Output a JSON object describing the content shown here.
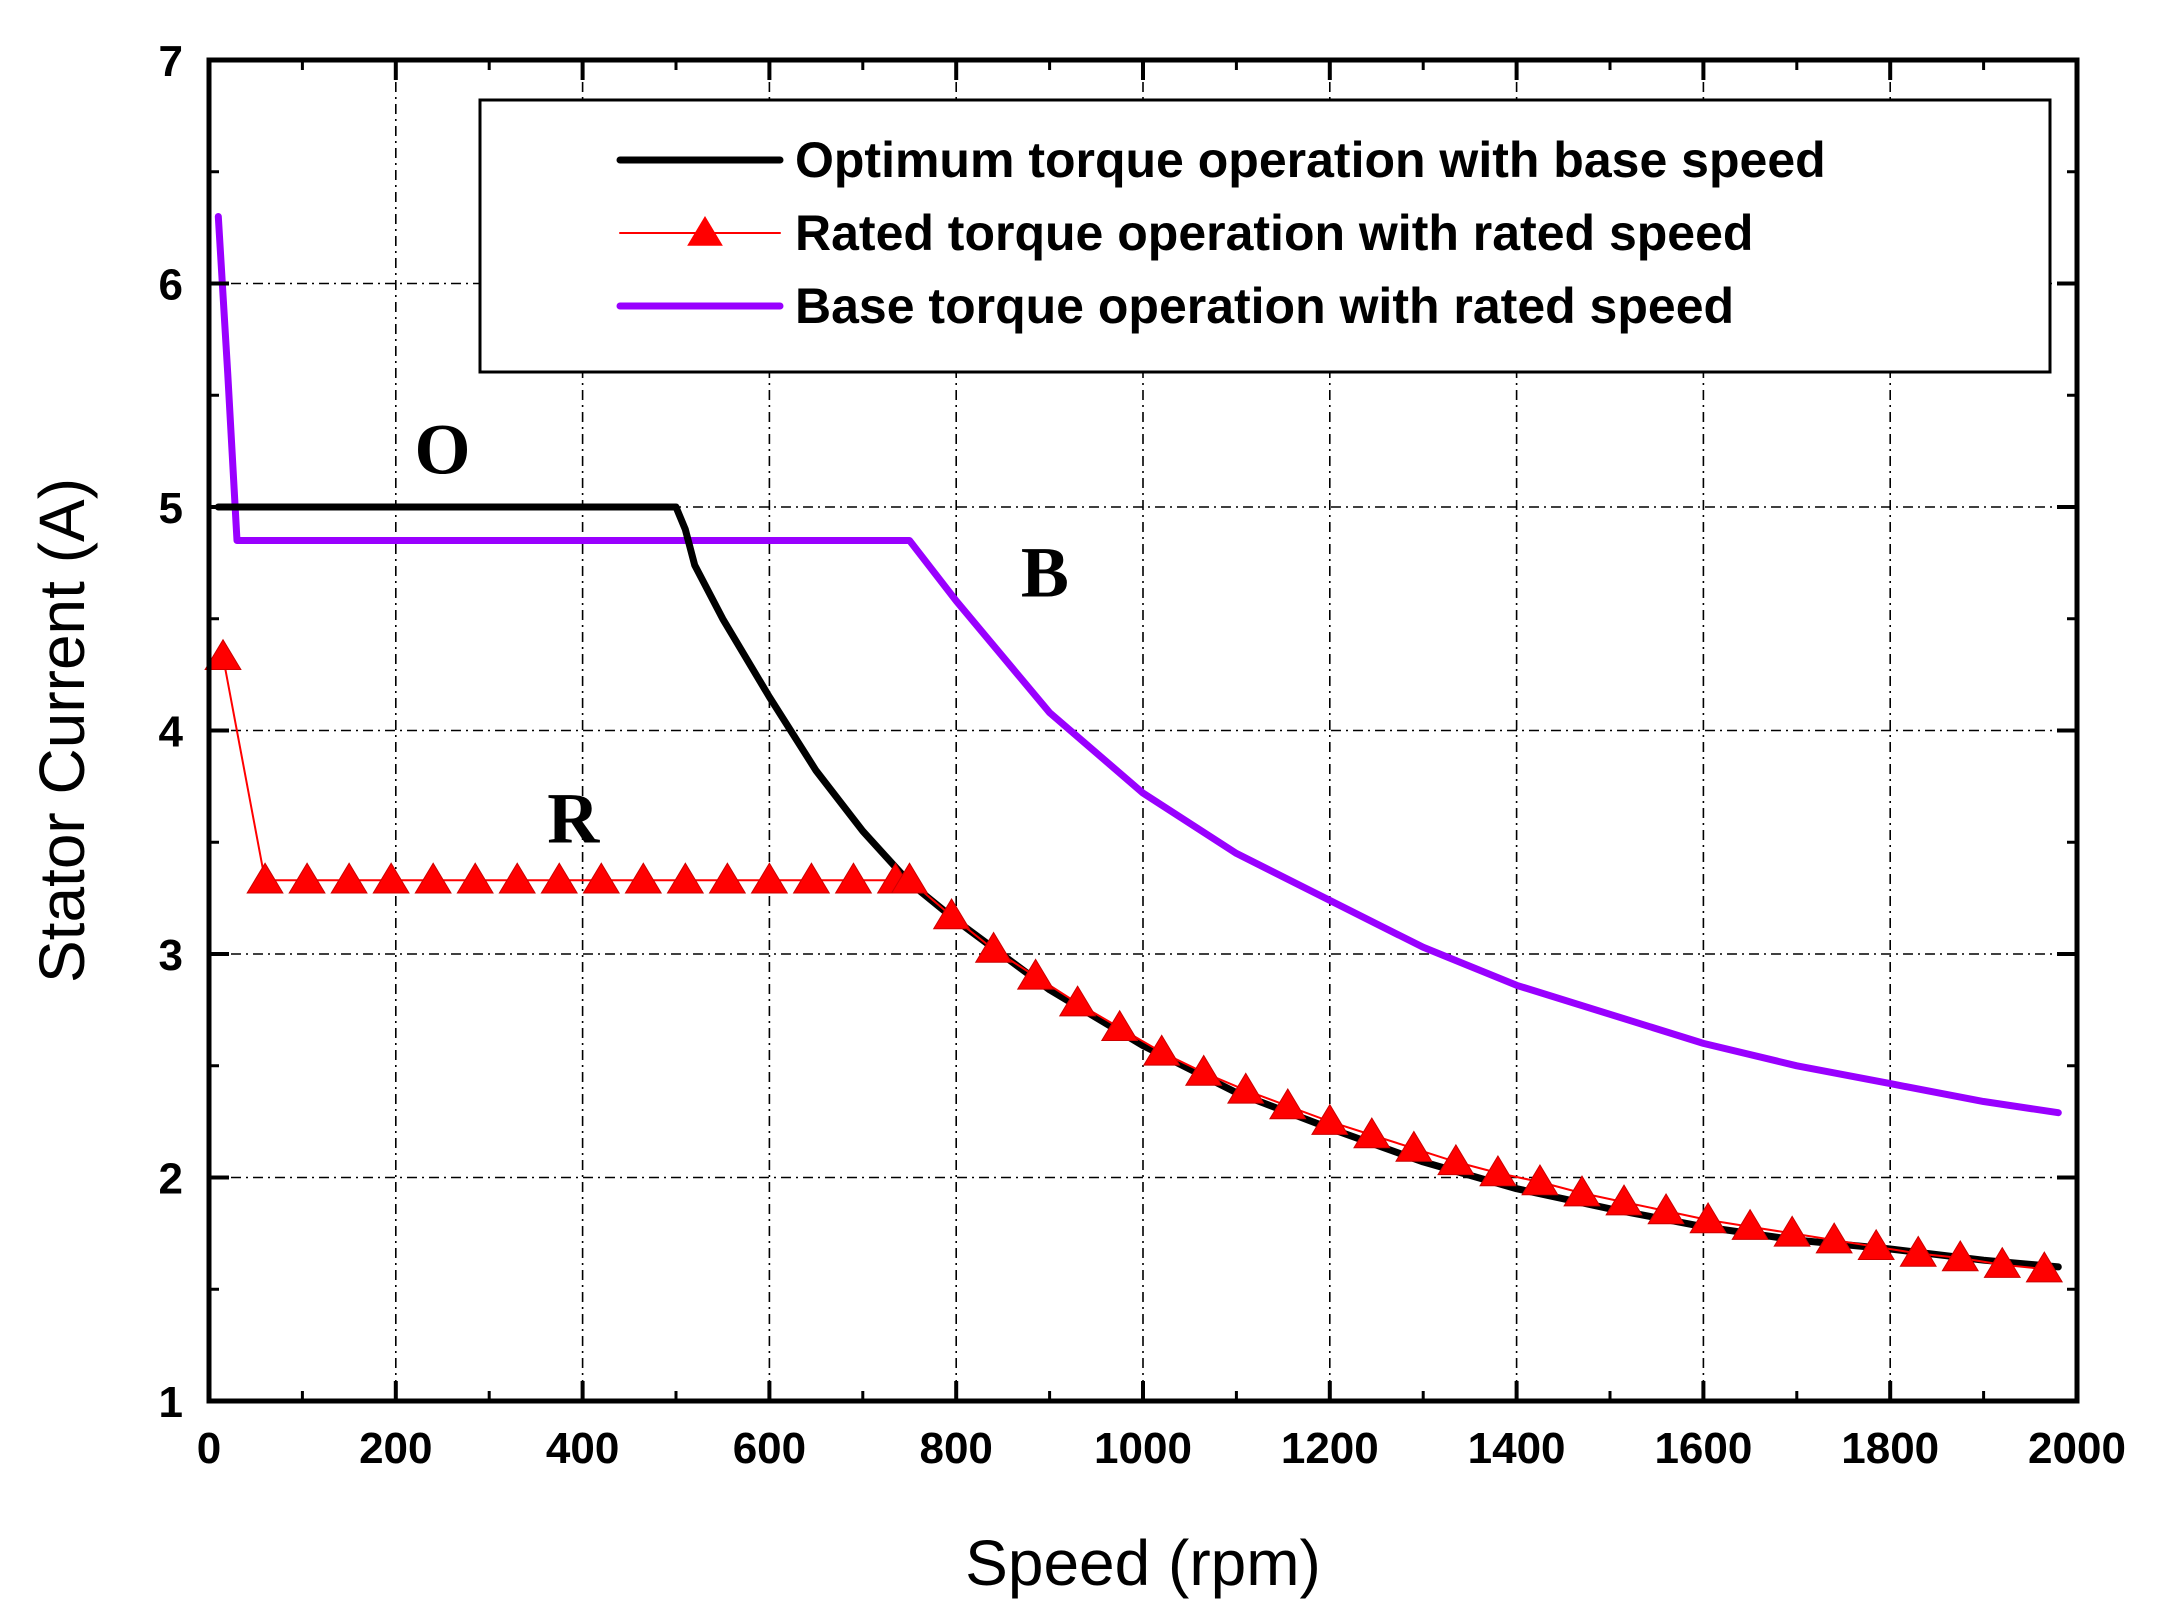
{
  "chart_data": {
    "type": "line",
    "title": "",
    "xlabel": "Speed (rpm)",
    "ylabel": "Stator Current (A)",
    "xlim": [
      0,
      2000
    ],
    "ylim": [
      1,
      7
    ],
    "x_ticks": [
      0,
      200,
      400,
      600,
      800,
      1000,
      1200,
      1400,
      1600,
      1800,
      2000
    ],
    "y_ticks": [
      1,
      2,
      3,
      4,
      5,
      6,
      7
    ],
    "x_tick_labels": [
      "0",
      "200",
      "400",
      "600",
      "800",
      "1000",
      "1200",
      "1400",
      "1600",
      "1800",
      "2000"
    ],
    "y_tick_labels": [
      "1",
      "2",
      "3",
      "4",
      "5",
      "6",
      "7"
    ],
    "grid": true,
    "legend_position": "top-right",
    "series": [
      {
        "name": "Optimum torque operation with base speed",
        "color": "#000000",
        "marker": "none",
        "x": [
          10,
          100,
          200,
          300,
          400,
          500,
          510,
          520,
          550,
          600,
          650,
          700,
          750,
          800,
          900,
          1000,
          1100,
          1200,
          1300,
          1400,
          1500,
          1600,
          1700,
          1800,
          1900,
          1980
        ],
        "y": [
          5.0,
          5.0,
          5.0,
          5.0,
          5.0,
          5.0,
          4.9,
          4.74,
          4.5,
          4.15,
          3.82,
          3.55,
          3.32,
          3.15,
          2.84,
          2.59,
          2.38,
          2.22,
          2.07,
          1.95,
          1.86,
          1.78,
          1.72,
          1.68,
          1.63,
          1.6
        ]
      },
      {
        "name": "Rated torque operation with rated speed",
        "color": "#ff0000",
        "marker": "triangle",
        "x": [
          15,
          60,
          105,
          150,
          195,
          240,
          285,
          330,
          375,
          420,
          465,
          510,
          555,
          600,
          645,
          690,
          735,
          750,
          795,
          840,
          885,
          930,
          975,
          1020,
          1065,
          1110,
          1155,
          1200,
          1245,
          1290,
          1335,
          1380,
          1425,
          1470,
          1515,
          1560,
          1605,
          1650,
          1695,
          1740,
          1785,
          1830,
          1875,
          1920,
          1965
        ],
        "y": [
          4.33,
          3.33,
          3.33,
          3.33,
          3.33,
          3.33,
          3.33,
          3.33,
          3.33,
          3.33,
          3.33,
          3.33,
          3.33,
          3.33,
          3.33,
          3.33,
          3.33,
          3.33,
          3.17,
          3.02,
          2.9,
          2.78,
          2.67,
          2.56,
          2.47,
          2.39,
          2.32,
          2.25,
          2.19,
          2.13,
          2.07,
          2.02,
          1.98,
          1.93,
          1.89,
          1.85,
          1.81,
          1.78,
          1.75,
          1.72,
          1.69,
          1.66,
          1.64,
          1.61,
          1.59
        ]
      },
      {
        "name": "Base torque operation with rated speed",
        "color": "#9900ff",
        "marker": "none",
        "x": [
          10,
          20,
          30,
          100,
          200,
          300,
          400,
          500,
          600,
          700,
          750,
          800,
          900,
          1000,
          1100,
          1200,
          1300,
          1400,
          1500,
          1600,
          1700,
          1800,
          1900,
          1980
        ],
        "y": [
          6.3,
          5.6,
          4.85,
          4.85,
          4.85,
          4.85,
          4.85,
          4.85,
          4.85,
          4.85,
          4.85,
          4.58,
          4.08,
          3.72,
          3.45,
          3.24,
          3.03,
          2.86,
          2.73,
          2.6,
          2.5,
          2.42,
          2.34,
          2.29
        ]
      }
    ],
    "annotations": [
      {
        "text": "O",
        "x": 250,
        "y": 5.15
      },
      {
        "text": "B",
        "x": 895,
        "y": 4.6
      },
      {
        "text": "R",
        "x": 390,
        "y": 3.5
      }
    ]
  }
}
